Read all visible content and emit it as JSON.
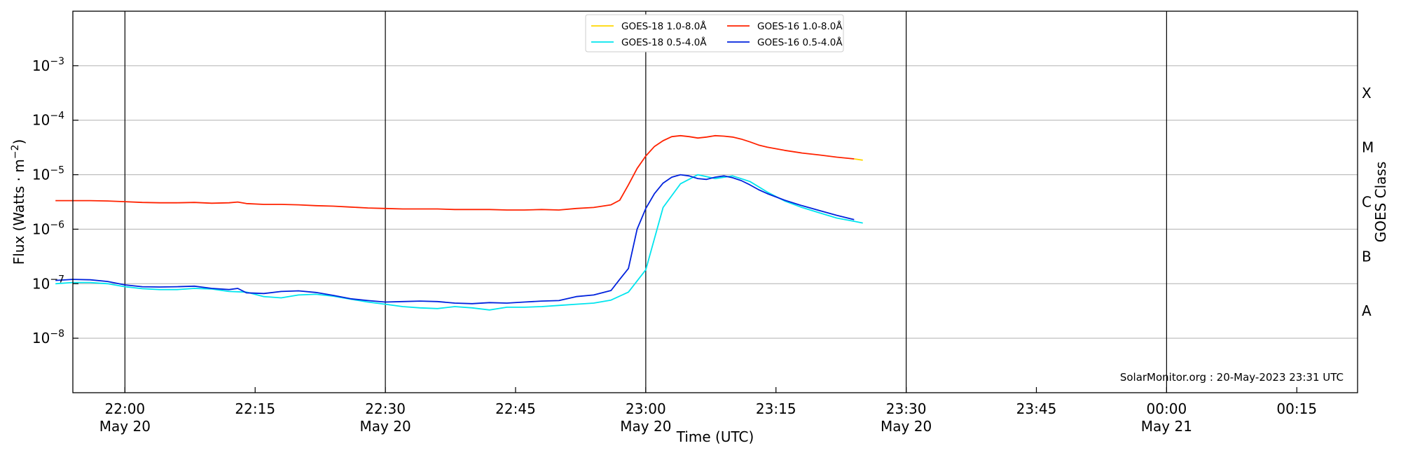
{
  "chart_data": {
    "type": "line",
    "xlabel": "Time (UTC)",
    "ylabel_main": "Flux (Watts · m",
    "ylabel_exp": "−2",
    "ylabel_close": ")",
    "y2label": "GOES Class",
    "yscale": "log",
    "xlim": [
      "21:54",
      "00:22"
    ],
    "ylim": [
      1e-09,
      0.01
    ],
    "grid_y": true,
    "legend_position": "top-center",
    "credit": "SolarMonitor.org : 20-May-2023 23:31 UTC",
    "y_ticks": [
      {
        "exp": -3,
        "base": "10",
        "sup": "−3"
      },
      {
        "exp": -4,
        "base": "10",
        "sup": "−4"
      },
      {
        "exp": -5,
        "base": "10",
        "sup": "−5"
      },
      {
        "exp": -6,
        "base": "10",
        "sup": "−6"
      },
      {
        "exp": -7,
        "base": "10",
        "sup": "−7"
      },
      {
        "exp": -8,
        "base": "10",
        "sup": "−8"
      }
    ],
    "goes_classes": [
      {
        "label": "X",
        "exp": -3.5
      },
      {
        "label": "M",
        "exp": -4.5
      },
      {
        "label": "C",
        "exp": -5.5
      },
      {
        "label": "B",
        "exp": -6.5
      },
      {
        "label": "A",
        "exp": -7.5
      }
    ],
    "x_ticks": [
      {
        "min": 0,
        "time": "22:00",
        "date": "May 20",
        "vline": true
      },
      {
        "min": 15,
        "time": "22:15",
        "date": "",
        "vline": false
      },
      {
        "min": 30,
        "time": "22:30",
        "date": "May 20",
        "vline": true
      },
      {
        "min": 45,
        "time": "22:45",
        "date": "",
        "vline": false
      },
      {
        "min": 60,
        "time": "23:00",
        "date": "May 20",
        "vline": true
      },
      {
        "min": 75,
        "time": "23:15",
        "date": "",
        "vline": false
      },
      {
        "min": 90,
        "time": "23:30",
        "date": "May 20",
        "vline": true
      },
      {
        "min": 105,
        "time": "23:45",
        "date": "",
        "vline": false
      },
      {
        "min": 120,
        "time": "00:00",
        "date": "May 21",
        "vline": true
      },
      {
        "min": 135,
        "time": "00:15",
        "date": "",
        "vline": false
      }
    ],
    "series": [
      {
        "name": "GOES-18 1.0-8.0Å",
        "color": "#ffd700",
        "legend_row": 0,
        "legend_col": 0,
        "x_min": [
          84,
          85
        ],
        "y": [
          1.95e-05,
          1.85e-05
        ]
      },
      {
        "name": "GOES-18 0.5-4.0Å",
        "color": "#00e5ee",
        "legend_row": 1,
        "legend_col": 0,
        "x_min": [
          -8,
          -6,
          -4,
          -2,
          0,
          2,
          4,
          6,
          8,
          10,
          12,
          14,
          16,
          18,
          20,
          22,
          24,
          26,
          28,
          30,
          32,
          34,
          36,
          38,
          40,
          42,
          44,
          46,
          48,
          50,
          52,
          54,
          56,
          58,
          60,
          62,
          64,
          66,
          68,
          70,
          72,
          74,
          76,
          78,
          80,
          82,
          84,
          85
        ],
        "y": [
          1e-07,
          1.05e-07,
          1.05e-07,
          1e-07,
          8.8e-08,
          8.1e-08,
          7.8e-08,
          7.8e-08,
          8.2e-08,
          8e-08,
          7.2e-08,
          7e-08,
          5.8e-08,
          5.5e-08,
          6.2e-08,
          6.4e-08,
          5.9e-08,
          5.2e-08,
          4.6e-08,
          4.2e-08,
          3.8e-08,
          3.6e-08,
          3.5e-08,
          3.8e-08,
          3.6e-08,
          3.3e-08,
          3.7e-08,
          3.7e-08,
          3.8e-08,
          4e-08,
          4.2e-08,
          4.4e-08,
          5e-08,
          7e-08,
          1.8e-07,
          2.5e-06,
          6.8e-06,
          1e-05,
          8.5e-06,
          9.5e-06,
          7.5e-06,
          4.8e-06,
          3.3e-06,
          2.5e-06,
          2e-06,
          1.6e-06,
          1.4e-06,
          1.3e-06
        ]
      },
      {
        "name": "GOES-16 1.0-8.0Å",
        "color": "#ff2200",
        "legend_row": 0,
        "legend_col": 1,
        "x_min": [
          -8,
          -6,
          -4,
          -2,
          0,
          2,
          4,
          6,
          8,
          10,
          12,
          13,
          14,
          16,
          18,
          20,
          22,
          24,
          26,
          28,
          30,
          32,
          34,
          36,
          38,
          40,
          42,
          44,
          46,
          48,
          50,
          52,
          54,
          56,
          57,
          58,
          59,
          60,
          61,
          62,
          63,
          64,
          65,
          66,
          67,
          68,
          69,
          70,
          71,
          72,
          73,
          74,
          76,
          78,
          80,
          82,
          84
        ],
        "y": [
          3.35e-06,
          3.35e-06,
          3.35e-06,
          3.3e-06,
          3.2e-06,
          3.1e-06,
          3.05e-06,
          3.05e-06,
          3.1e-06,
          3e-06,
          3.05e-06,
          3.15e-06,
          2.95e-06,
          2.85e-06,
          2.85e-06,
          2.8e-06,
          2.7e-06,
          2.65e-06,
          2.55e-06,
          2.45e-06,
          2.4e-06,
          2.35e-06,
          2.35e-06,
          2.35e-06,
          2.3e-06,
          2.3e-06,
          2.3e-06,
          2.25e-06,
          2.25e-06,
          2.3e-06,
          2.25e-06,
          2.4e-06,
          2.5e-06,
          2.8e-06,
          3.4e-06,
          6.5e-06,
          1.3e-05,
          2.2e-05,
          3.3e-05,
          4.2e-05,
          5e-05,
          5.2e-05,
          5e-05,
          4.7e-05,
          4.9e-05,
          5.2e-05,
          5.1e-05,
          4.9e-05,
          4.5e-05,
          4e-05,
          3.5e-05,
          3.2e-05,
          2.8e-05,
          2.5e-05,
          2.3e-05,
          2.1e-05,
          1.95e-05
        ]
      },
      {
        "name": "GOES-16 0.5-4.0Å",
        "color": "#0022dd",
        "legend_row": 1,
        "legend_col": 1,
        "x_min": [
          -8,
          -6,
          -4,
          -2,
          0,
          2,
          4,
          6,
          8,
          10,
          12,
          13,
          14,
          16,
          18,
          20,
          22,
          24,
          26,
          28,
          30,
          32,
          34,
          36,
          38,
          40,
          42,
          44,
          46,
          48,
          50,
          52,
          54,
          56,
          57,
          58,
          59,
          60,
          61,
          62,
          63,
          64,
          65,
          66,
          67,
          68,
          69,
          70,
          71,
          72,
          73,
          74,
          76,
          78,
          80,
          82,
          84
        ],
        "y": [
          1.15e-07,
          1.2e-07,
          1.18e-07,
          1.1e-07,
          9.5e-08,
          8.8e-08,
          8.7e-08,
          8.8e-08,
          9e-08,
          8.2e-08,
          7.8e-08,
          8.2e-08,
          6.8e-08,
          6.6e-08,
          7.2e-08,
          7.4e-08,
          6.9e-08,
          6.1e-08,
          5.3e-08,
          4.9e-08,
          4.6e-08,
          4.7e-08,
          4.8e-08,
          4.7e-08,
          4.4e-08,
          4.3e-08,
          4.5e-08,
          4.4e-08,
          4.6e-08,
          4.8e-08,
          4.9e-08,
          5.8e-08,
          6.2e-08,
          7.5e-08,
          1.2e-07,
          1.9e-07,
          1e-06,
          2.4e-06,
          4.5e-06,
          7e-06,
          9e-06,
          1e-05,
          9.5e-06,
          8.5e-06,
          8.2e-06,
          9e-06,
          9.5e-06,
          8.8e-06,
          7.8e-06,
          6.5e-06,
          5.3e-06,
          4.5e-06,
          3.4e-06,
          2.7e-06,
          2.2e-06,
          1.8e-06,
          1.5e-06
        ]
      }
    ]
  }
}
